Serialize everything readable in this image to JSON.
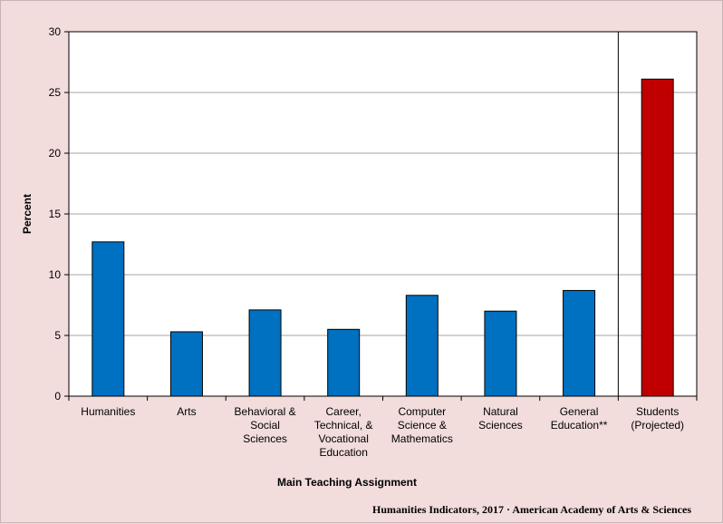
{
  "chart_data": {
    "type": "bar",
    "categories": [
      "Humanities",
      "Arts",
      "Behavioral & Social Sciences",
      "Career, Technical, & Vocational Education",
      "Computer Science & Mathematics",
      "Natural Sciences",
      "General Education**",
      "Students (Projected)"
    ],
    "category_lines": [
      [
        "Humanities"
      ],
      [
        "Arts"
      ],
      [
        "Behavioral &",
        "Social",
        "Sciences"
      ],
      [
        "Career,",
        "Technical, &",
        "Vocational",
        "Education"
      ],
      [
        "Computer",
        "Science &",
        "Mathematics"
      ],
      [
        "Natural",
        "Sciences"
      ],
      [
        "General",
        "Education**"
      ],
      [
        "Students",
        "(Projected)"
      ]
    ],
    "values": [
      12.7,
      5.3,
      7.1,
      5.5,
      8.3,
      7.0,
      8.7,
      26.1
    ],
    "bar_colors": [
      "#0070c0",
      "#0070c0",
      "#0070c0",
      "#0070c0",
      "#0070c0",
      "#0070c0",
      "#0070c0",
      "#c00000"
    ],
    "title": "",
    "xlabel": "Main Teaching Assignment",
    "ylabel": "Percent",
    "ylim": [
      0,
      30
    ],
    "yticks": [
      0,
      5,
      10,
      15,
      20,
      25,
      30
    ],
    "grid": true,
    "legend": "none",
    "divider_before_category": 7
  },
  "credit": {
    "text": "Humanities Indicators, 2017 · American Academy of Arts & Sciences"
  }
}
